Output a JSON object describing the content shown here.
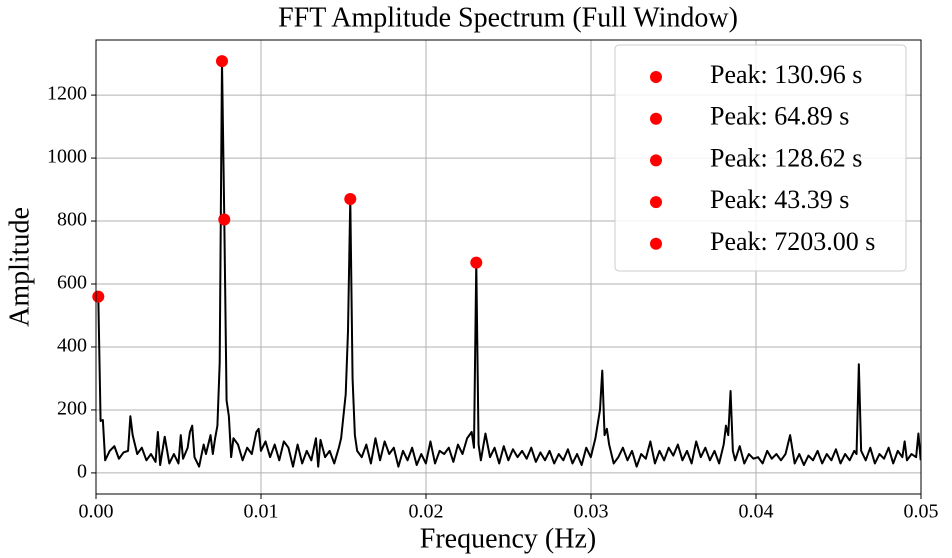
{
  "chart_data": {
    "type": "line",
    "title": "FFT Amplitude Spectrum (Full Window)",
    "xlabel": "Frequency (Hz)",
    "ylabel": "Amplitude",
    "xlim": [
      0,
      0.05
    ],
    "ylim": [
      -67,
      1375
    ],
    "xticks": [
      {
        "value": 0,
        "label": "0.00"
      },
      {
        "value": 0.01,
        "label": "0.01"
      },
      {
        "value": 0.02,
        "label": "0.02"
      },
      {
        "value": 0.03,
        "label": "0.03"
      },
      {
        "value": 0.04,
        "label": "0.04"
      },
      {
        "value": 0.05,
        "label": "0.05"
      }
    ],
    "yticks": [
      0,
      200,
      400,
      600,
      800,
      1000,
      1200
    ],
    "grid": true,
    "legend": "upper right",
    "x": [
      0.000139,
      0.000278,
      0.000416,
      0.000555,
      0.000833,
      0.001111,
      0.001389,
      0.001666,
      0.001944,
      0.002083,
      0.002222,
      0.002499,
      0.002777,
      0.003055,
      0.003332,
      0.00361,
      0.003749,
      0.003888,
      0.004165,
      0.004443,
      0.004721,
      0.004998,
      0.005137,
      0.005276,
      0.005554,
      0.005692,
      0.005831,
      0.00597,
      0.006248,
      0.006525,
      0.006664,
      0.006942,
      0.007081,
      0.00722,
      0.007358,
      0.007497,
      0.007636,
      0.007775,
      0.007914,
      0.008053,
      0.008191,
      0.00833,
      0.008608,
      0.008886,
      0.009163,
      0.009441,
      0.009719,
      0.009858,
      0.009997,
      0.010274,
      0.010552,
      0.01083,
      0.011107,
      0.011385,
      0.011663,
      0.01194,
      0.012218,
      0.012496,
      0.012773,
      0.013051,
      0.013329,
      0.013468,
      0.013606,
      0.013884,
      0.014162,
      0.014439,
      0.014717,
      0.014856,
      0.015134,
      0.015272,
      0.015411,
      0.01555,
      0.015689,
      0.015828,
      0.016105,
      0.016383,
      0.016661,
      0.016938,
      0.017216,
      0.017494,
      0.017771,
      0.018049,
      0.018327,
      0.018604,
      0.018882,
      0.01916,
      0.019437,
      0.019715,
      0.019993,
      0.02027,
      0.020548,
      0.020826,
      0.021103,
      0.021381,
      0.021659,
      0.021936,
      0.022214,
      0.022492,
      0.022769,
      0.022908,
      0.023047,
      0.023186,
      0.023325,
      0.023603,
      0.02388,
      0.024158,
      0.024436,
      0.024713,
      0.024991,
      0.025269,
      0.025546,
      0.025824,
      0.026102,
      0.026379,
      0.026657,
      0.026935,
      0.027212,
      0.02749,
      0.027768,
      0.028045,
      0.028323,
      0.028601,
      0.028878,
      0.029156,
      0.029434,
      0.029711,
      0.029989,
      0.030267,
      0.030544,
      0.030683,
      0.030822,
      0.030961,
      0.0311,
      0.031377,
      0.031655,
      0.031933,
      0.03221,
      0.032488,
      0.032766,
      0.033043,
      0.033321,
      0.033599,
      0.033876,
      0.034154,
      0.034432,
      0.034709,
      0.034987,
      0.035265,
      0.035542,
      0.03582,
      0.036098,
      0.036375,
      0.036653,
      0.036931,
      0.037208,
      0.037486,
      0.037764,
      0.038041,
      0.03818,
      0.038319,
      0.038458,
      0.038597,
      0.038736,
      0.039013,
      0.039291,
      0.039569,
      0.039846,
      0.040124,
      0.040402,
      0.040679,
      0.040957,
      0.041235,
      0.041512,
      0.04179,
      0.042068,
      0.042345,
      0.042623,
      0.042901,
      0.043178,
      0.043456,
      0.043734,
      0.044011,
      0.044289,
      0.044567,
      0.044844,
      0.045122,
      0.0454,
      0.045677,
      0.045955,
      0.046094,
      0.046233,
      0.046372,
      0.04665,
      0.046927,
      0.047205,
      0.047483,
      0.04776,
      0.048038,
      0.048316,
      0.048593,
      0.048871,
      0.04901,
      0.049149,
      0.049426,
      0.049704,
      0.049843,
      0.049982
    ],
    "series": [
      {
        "color": "#000000",
        "values": [
          560,
          165,
          168,
          40,
          70,
          85,
          45,
          65,
          70,
          180,
          120,
          60,
          80,
          40,
          60,
          35,
          130,
          25,
          115,
          30,
          60,
          30,
          120,
          45,
          80,
          130,
          150,
          50,
          20,
          90,
          60,
          120,
          60,
          110,
          150,
          350,
          1308,
          805,
          230,
          180,
          50,
          110,
          90,
          40,
          80,
          60,
          130,
          140,
          70,
          100,
          50,
          90,
          40,
          100,
          80,
          20,
          90,
          30,
          70,
          40,
          110,
          20,
          105,
          50,
          70,
          30,
          80,
          110,
          250,
          450,
          870,
          300,
          120,
          70,
          50,
          90,
          30,
          110,
          40,
          100,
          60,
          80,
          20,
          70,
          40,
          80,
          25,
          60,
          30,
          100,
          30,
          70,
          60,
          80,
          35,
          90,
          60,
          110,
          130,
          80,
          668,
          90,
          40,
          125,
          50,
          80,
          30,
          85,
          40,
          75,
          50,
          70,
          45,
          80,
          35,
          65,
          40,
          70,
          30,
          60,
          40,
          75,
          30,
          60,
          25,
          80,
          50,
          110,
          200,
          325,
          120,
          140,
          90,
          30,
          50,
          80,
          40,
          70,
          20,
          60,
          45,
          100,
          30,
          70,
          40,
          80,
          55,
          90,
          40,
          70,
          30,
          100,
          50,
          80,
          40,
          70,
          30,
          90,
          150,
          120,
          260,
          70,
          40,
          85,
          30,
          60,
          45,
          50,
          30,
          70,
          45,
          60,
          40,
          60,
          120,
          30,
          60,
          25,
          55,
          40,
          70,
          30,
          60,
          40,
          75,
          30,
          60,
          40,
          70,
          60,
          345,
          70,
          40,
          80,
          30,
          60,
          45,
          80,
          30,
          70,
          50,
          100,
          40,
          60,
          50,
          125,
          40
        ]
      }
    ],
    "peaks": [
      {
        "name": "Peak: 130.96 s",
        "x": 0.007636,
        "value": 1308,
        "color": "#ff0000"
      },
      {
        "name": "Peak: 64.89 s",
        "x": 0.015411,
        "value": 870,
        "color": "#ff0000"
      },
      {
        "name": "Peak: 128.62 s",
        "x": 0.007775,
        "value": 805,
        "color": "#ff0000"
      },
      {
        "name": "Peak: 43.39 s",
        "x": 0.023047,
        "value": 668,
        "color": "#ff0000"
      },
      {
        "name": "Peak: 7203.00 s",
        "x": 0.000139,
        "value": 560,
        "color": "#ff0000"
      }
    ]
  }
}
